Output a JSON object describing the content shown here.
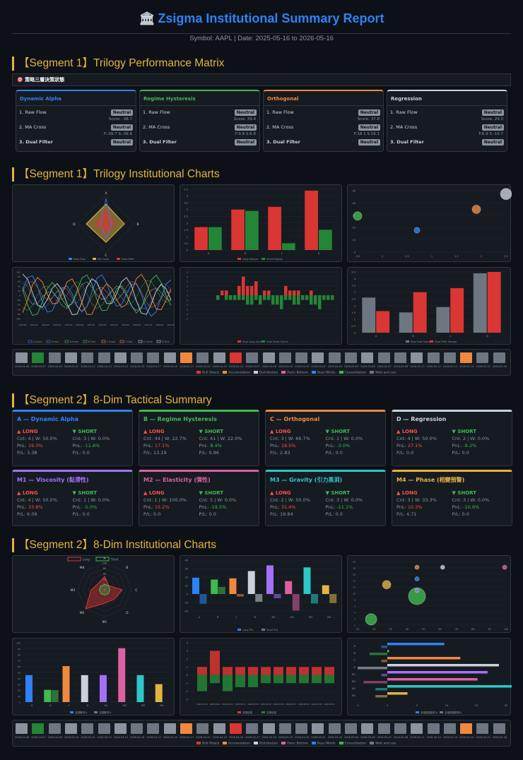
{
  "header": {
    "title": "Zsigma Institutional Summary Report",
    "icon": "bank-icon",
    "subtitle": "Symbol: AAPL | Date: 2025-05-16 to 2026-05-16"
  },
  "sections": {
    "s1": "【Segment 1】Trilogy Performance Matrix",
    "s2": "【Segment 1】Trilogy Institutional Charts",
    "s3": "【Segment 2】8-Dim Tactical Summary",
    "s4": "【Segment 2】8-Dim Institutional Charts"
  },
  "strip_label": "🎯 策略三層決策狀態",
  "matrix": [
    {
      "name": "Dynamic Alpha",
      "color": "#2f81f7",
      "r1": "1. Raw Flow",
      "b1": "Neutral",
      "m1": "Score: -38.7",
      "r2": "2. MA Cross",
      "b2": "Neutral",
      "m2": "F:-39.7 S:-36.8",
      "r3": "3. Dual Filter",
      "b3": "Neutral"
    },
    {
      "name": "Regime Hysteresis",
      "color": "#3fb950",
      "r1": "1. Raw Flow",
      "b1": "Neutral",
      "m1": "Score: 39.4",
      "r2": "2. MA Cross",
      "b2": "Neutral",
      "m2": "F:9.8 S:6.8",
      "r3": "3. Dual Filter",
      "b3": "Neutral"
    },
    {
      "name": "Orthogonal",
      "color": "#f0883e",
      "r1": "1. Raw Flow",
      "b1": "Neutral",
      "m1": "Score: 37.8",
      "r2": "2. MA Cross",
      "b2": "Neutral",
      "m2": "F:18.1 S:16.1",
      "r3": "3. Dual Filter",
      "b3": "Neutral"
    },
    {
      "name": "Regression",
      "color": "#c9d1d9",
      "r1": "1. Raw Flow",
      "b1": "Neutral",
      "m1": "Score: 29.0",
      "r2": "2. MA Cross",
      "b2": "Neutral",
      "m2": "F:6.9 S:-10.7",
      "r3": "3. Dual Filter",
      "b3": "Neutral"
    }
  ],
  "tactical": [
    {
      "name": "A — Dynamic Alpha",
      "color": "#2f81f7",
      "long": "▲ LONG",
      "short": "▼ SHORT",
      "lc": "Cnt: 4 | W: 50.0%",
      "lp": "PnL: ",
      "lpv": "19.3%",
      "lf": "P/L: 3.38",
      "sc": "Cnt: 3 | W: 0.0%",
      "sp": "PnL: ",
      "spv": "-11.6%",
      "sf": "P/L: 0.0"
    },
    {
      "name": "B — Regime Hysteresis",
      "color": "#3fb950",
      "long": "▲ LONG",
      "short": "▼ SHORT",
      "lc": "Cnt: 44 | W: 22.7%",
      "lp": "PnL: ",
      "lpv": "17.1%",
      "lf": "P/L: 13.19",
      "sc": "Cnt: 41 | W: 22.0%",
      "sp": "PnL: ",
      "spv": "8.4%",
      "sf": "P/L: 0.86"
    },
    {
      "name": "C — Orthogonal",
      "color": "#f0883e",
      "long": "▲ LONG",
      "short": "▼ SHORT",
      "lc": "Cnt: 3 | W: 66.7%",
      "lp": "PnL: ",
      "lpv": "18.5%",
      "lf": "P/L: 2.83",
      "sc": "Cnt: 1 | W: 0.0%",
      "sp": "PnL: ",
      "spv": "-3.0%",
      "sf": "P/L: 0.0"
    },
    {
      "name": "D — Regression",
      "color": "#c9d1d9",
      "long": "▲ LONG",
      "short": "▼ SHORT",
      "lc": "Cnt: 4 | W: 50.0%",
      "lp": "PnL: ",
      "lpv": "27.1%",
      "lf": "P/L: 0.0",
      "sc": "Cnt: 2 | W: 0.0%",
      "sp": "PnL: ",
      "spv": "-9.2%",
      "sf": "P/L: 0.0"
    },
    {
      "name": "M1 — Viscosity (黏滯性)",
      "color": "#a371f7",
      "long": "▲ LONG",
      "short": "▼ SHORT",
      "lc": "Cnt: 4 | W: 50.0%",
      "lp": "PnL: ",
      "lpv": "33.8%",
      "lf": "P/L: 6.09",
      "sc": "Cnt: 1 | W: 0.0%",
      "sp": "PnL: ",
      "spv": "-5.0%",
      "sf": "P/L: 0.0"
    },
    {
      "name": "M2 — Elasticity (彈性)",
      "color": "#db61a2",
      "long": "▲ LONG",
      "short": "▼ SHORT",
      "lc": "Cnt: 1 | W: 100.0%",
      "lp": "PnL: ",
      "lpv": "15.2%",
      "lf": "P/L: 0.0",
      "sc": "Cnt: 5 | W: 0.0%",
      "sp": "PnL: ",
      "spv": "-19.5%",
      "sf": "P/L: 0.0"
    },
    {
      "name": "M3 — Gravity (引力黑洞)",
      "color": "#2dc7c7",
      "long": "▲ LONG",
      "short": "▼ SHORT",
      "lc": "Cnt: 2 | W: 50.0%",
      "lp": "PnL: ",
      "lpv": "31.4%",
      "lf": "P/L: 19.84",
      "sc": "Cnt: 3 | W: 0.0%",
      "sp": "PnL: ",
      "spv": "-11.1%",
      "sf": "P/L: 0.0"
    },
    {
      "name": "M4 — Phase (相變預警)",
      "color": "#e3b341",
      "long": "▲ LONG",
      "short": "▼ SHORT",
      "lc": "Cnt: 3 | W: 33.3%",
      "lp": "PnL: ",
      "lpv": "10.3%",
      "lf": "P/L: 4.71",
      "sc": "Cnt: 3 | W: 0.0%",
      "sp": "PnL: ",
      "spv": "-10.6%",
      "sf": "P/L: 0.0"
    }
  ],
  "chart_data": [
    {
      "type": "radar",
      "axes": [
        "A",
        "B",
        "C",
        "D"
      ],
      "series": [
        {
          "name": "Raw Flow"
        },
        {
          "name": "MA Cross"
        },
        {
          "name": "Dual Filter"
        }
      ]
    },
    {
      "type": "bar",
      "categories": [
        "A",
        "B",
        "C",
        "D"
      ],
      "series": [
        {
          "name": "Long Sharpe",
          "values": [
            1.7,
            3.0,
            3.2,
            4.4
          ]
        },
        {
          "name": "Short Sharpe",
          "values": [
            1.7,
            2.9,
            0.5,
            1.5
          ]
        }
      ],
      "yticks": [
        "0",
        "0.5",
        "1",
        "1.5",
        "2",
        "2.5",
        "3",
        "3.5",
        "4",
        "4.5"
      ]
    },
    {
      "type": "scatter",
      "points": [
        {
          "x": 0.0,
          "y": 33,
          "r": 6,
          "c": "#3fb950"
        },
        {
          "x": 3.2,
          "y": 20,
          "r": 4,
          "c": "#2f81f7"
        },
        {
          "x": 6.4,
          "y": 39,
          "r": 6,
          "c": "#f0883e"
        },
        {
          "x": 8.0,
          "y": 53,
          "r": 8,
          "c": "#c9d1d9"
        }
      ],
      "xticks": [
        "-0.5",
        "0",
        "0.5",
        "1",
        "1.5",
        "2",
        "2.5"
      ],
      "yticks": [
        "0",
        "10",
        "20",
        "30",
        "40",
        "50"
      ]
    },
    {
      "type": "line",
      "legend": [
        "A Score",
        "A Fast",
        "B Score",
        "B Fast",
        "C Score",
        "C Fast",
        "D Score",
        "D Fast"
      ],
      "yticks": [
        "100",
        "80",
        "60",
        "40",
        "20",
        "0",
        "-20",
        "-40",
        "-60",
        "-80",
        "-100"
      ]
    },
    {
      "type": "bar",
      "series": [
        {
          "name": "Dual Long Count"
        },
        {
          "name": "Dual Short Count"
        }
      ],
      "yticks": [
        "5",
        "4",
        "3",
        "2",
        "1",
        "0",
        "-1",
        "-2",
        "-3",
        "-4",
        "-5"
      ]
    },
    {
      "type": "bar",
      "categories": [
        "A",
        "B",
        "C",
        "D"
      ],
      "series": [
        {
          "name": "Raw Flow Sharpe",
          "values": [
            2.6,
            1.5,
            1.9,
            4.4
          ]
        },
        {
          "name": "Dual Filter Sharpe",
          "values": [
            1.6,
            3.0,
            3.3,
            4.5
          ]
        }
      ],
      "yticks": [
        "0",
        "0.5",
        "1",
        "1.5",
        "2",
        "2.5",
        "3",
        "3.5",
        "4",
        "4.5"
      ]
    },
    {
      "type": "radar",
      "axes": [
        "A",
        "B",
        "C",
        "D",
        "M1",
        "M2",
        "M3",
        "M4"
      ],
      "series": [
        {
          "name": "Long"
        },
        {
          "name": "Short"
        }
      ],
      "ticks": [
        "0",
        "20",
        "40",
        "60",
        "80",
        "100"
      ]
    },
    {
      "type": "bar",
      "categories": [
        "A",
        "B",
        "C",
        "D",
        "M1",
        "M2",
        "M3",
        "M4"
      ],
      "series": [
        {
          "name": "Long PnL",
          "values": [
            19.3,
            17.1,
            18.5,
            27.1,
            33.8,
            15.2,
            31.4,
            10.3
          ]
        },
        {
          "name": "Short PnL",
          "values": [
            -11.6,
            8.4,
            -3.0,
            -9.2,
            -5.0,
            -19.5,
            -11.1,
            -10.6
          ]
        }
      ],
      "yticks": [
        "40",
        "30",
        "20",
        "10",
        "0",
        "-10",
        "-20"
      ]
    },
    {
      "type": "scatter",
      "xticks": [
        "10",
        "20",
        "30",
        "40",
        "50",
        "60",
        "70",
        "80",
        "90",
        "100"
      ],
      "yticks": [
        "0",
        "2",
        "4",
        "6",
        "8",
        "10",
        "12",
        "14",
        "16",
        "18",
        "20"
      ]
    },
    {
      "type": "bar",
      "categories": [
        "A",
        "B",
        "C",
        "D",
        "M1",
        "M2",
        "M3",
        "M4"
      ],
      "series": [
        {
          "name": "多頭勝率%"
        },
        {
          "name": "空頭勝率%"
        }
      ],
      "yticks": [
        "0",
        "10",
        "20",
        "30",
        "40",
        "50",
        "60",
        "70",
        "80",
        "90",
        "100"
      ]
    },
    {
      "type": "bar",
      "series": [
        {
          "name": "多頭信號"
        },
        {
          "name": "空頭信號"
        }
      ],
      "yticks": [
        "4",
        "3",
        "2",
        "1",
        "0",
        "-1",
        "-2",
        "-3"
      ]
    },
    {
      "type": "bar-horizontal",
      "categories": [
        "A",
        "B",
        "C",
        "D",
        "M1",
        "M2",
        "M3",
        "M4"
      ],
      "series": [
        {
          "name": "多頭期望盈利%"
        },
        {
          "name": "空頭期望虧損%"
        }
      ],
      "xticks": [
        "-5",
        "0",
        "5",
        "10",
        "15",
        "20"
      ]
    }
  ],
  "regime_legend": [
    "Bull Attack",
    "Accumulation",
    "Distribution",
    "Panic Bottom",
    "Bear Winds",
    "Consolidation",
    "Wait and see"
  ],
  "regime_colors": [
    "#da3633",
    "#f0883e",
    "#c9d1d9",
    "#db61a2",
    "#2f81f7",
    "#3fb950",
    "#6e7681"
  ],
  "strip_dates": [
    "2026-04-08",
    "2026-04-07",
    "2026-04-09",
    "2026-04-10",
    "2026-04-13",
    "2026-04-14",
    "2026-04-15",
    "2026-04-16",
    "2026-04-17",
    "2026-04-20",
    "2026-04-21",
    "2026-04-22",
    "2026-04-23",
    "2026-04-24",
    "2026-04-27",
    "2026-04-28",
    "2026-04-29",
    "2026-04-30",
    "2026-05-01",
    "2026-05-04",
    "2026-05-05",
    "2026-05-06",
    "2026-05-07",
    "2026-05-08",
    "2026-05-11",
    "2026-05-12",
    "2026-05-13",
    "2026-05-14",
    "2026-05-15",
    "2026-05-16"
  ]
}
